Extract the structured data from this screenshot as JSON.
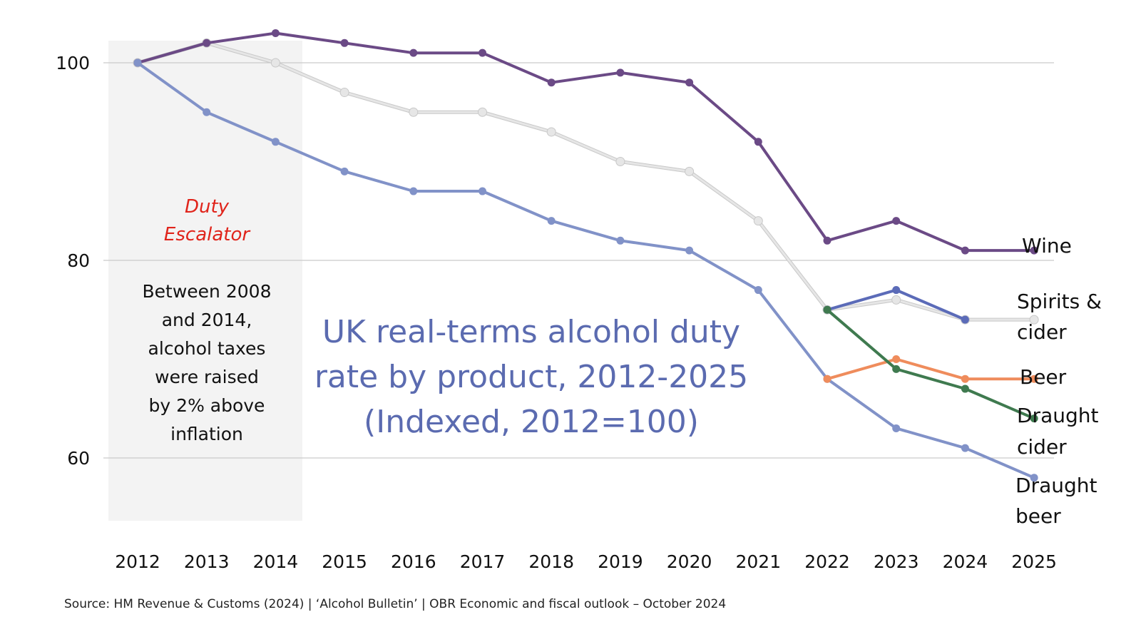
{
  "chart_data": {
    "type": "line",
    "title_lines": [
      "UK real-terms alcohol duty",
      "rate by product, 2012-2025",
      "(Indexed, 2012=100)"
    ],
    "xlabel": "",
    "ylabel": "",
    "x": [
      2012,
      2013,
      2014,
      2015,
      2016,
      2017,
      2018,
      2019,
      2020,
      2021,
      2022,
      2023,
      2024,
      2025
    ],
    "x_tick_labels": [
      "2012",
      "2013",
      "2014",
      "2015",
      "2016",
      "2017",
      "2018",
      "2019",
      "2020",
      "2021",
      "2022",
      "2023",
      "2024",
      "2025"
    ],
    "y_ticks": [
      60,
      80,
      100
    ],
    "y_tick_labels": [
      "60",
      "80",
      "100"
    ],
    "ylim": [
      55,
      104
    ],
    "grid": "horizontal",
    "series": [
      {
        "name": "Spirits & cider",
        "key": "spirits_cider",
        "color": "#e6e6e6",
        "outline": "#c8c8c8",
        "values": [
          100,
          102,
          100,
          97,
          95,
          95,
          93,
          90,
          89,
          84,
          75,
          76,
          74,
          74
        ],
        "label_lines": [
          "Spirits &",
          "cider"
        ]
      },
      {
        "name": "Spirits",
        "key": "spirits_variant",
        "color": "#5b6bb8",
        "x_start": 2022,
        "values": [
          null,
          null,
          null,
          null,
          null,
          null,
          null,
          null,
          null,
          null,
          75,
          77,
          74,
          null
        ],
        "label_lines": []
      },
      {
        "name": "Wine",
        "key": "wine",
        "color": "#6b4a86",
        "values": [
          100,
          102,
          103,
          102,
          101,
          101,
          98,
          99,
          98,
          92,
          82,
          84,
          81,
          81
        ],
        "label_lines": [
          "Wine"
        ]
      },
      {
        "name": "Draught beer",
        "key": "draught_beer",
        "color": "#8192c8",
        "values": [
          100,
          95,
          92,
          89,
          87,
          87,
          84,
          82,
          81,
          77,
          68,
          63,
          61,
          58
        ],
        "label_lines": [
          "Draught",
          "beer"
        ]
      },
      {
        "name": "Beer",
        "key": "beer",
        "color": "#ef8c5c",
        "values": [
          null,
          null,
          null,
          null,
          null,
          null,
          null,
          null,
          null,
          null,
          68,
          70,
          68,
          68
        ],
        "label_lines": [
          "Beer"
        ]
      },
      {
        "name": "Draught cider",
        "key": "draught_cider",
        "color": "#3f7a4f",
        "values": [
          null,
          null,
          null,
          null,
          null,
          null,
          null,
          null,
          null,
          null,
          75,
          69,
          67,
          64
        ],
        "label_lines": [
          "Draught",
          "cider"
        ]
      }
    ],
    "annotations": {
      "shaded_region": {
        "x_from": 2011.6,
        "x_to": 2014.4,
        "color": "#f3f3f3"
      },
      "escalator_title_lines": [
        "Duty",
        "Escalator"
      ],
      "escalator_body_lines": [
        "Between 2008",
        "and 2014,",
        "alcohol taxes",
        "were raised",
        "by 2% above",
        "inflation"
      ]
    },
    "source": "Source: HM Revenue & Customs (2024) | ‘Alcohol Bulletin’ | OBR Economic and fiscal outlook – October 2024"
  }
}
